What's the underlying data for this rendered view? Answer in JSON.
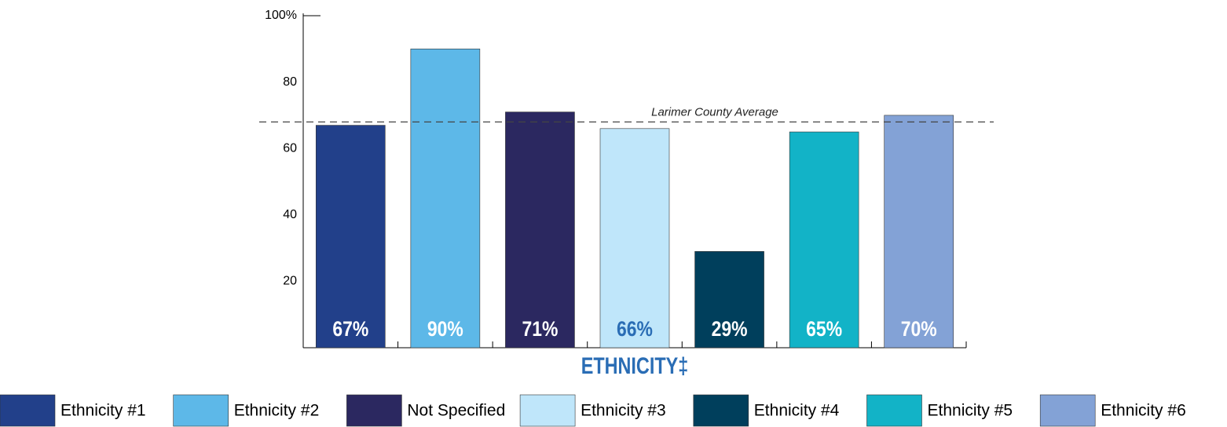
{
  "chart_data": {
    "type": "bar",
    "categories": [
      "Ethnicity #1",
      "Ethnicity #2",
      "Not Specified",
      "Ethnicity #3",
      "Ethnicity #4",
      "Ethnicity #5",
      "Ethnicity #6"
    ],
    "values": [
      67,
      90,
      71,
      66,
      29,
      65,
      70
    ],
    "value_labels": [
      "67%",
      "90%",
      "71%",
      "66%",
      "29%",
      "65%",
      "70%"
    ],
    "colors": [
      "#22408a",
      "#5db8e8",
      "#2b2860",
      "#bfe6fa",
      "#003f5c",
      "#12b3c7",
      "#83a2d6"
    ],
    "value_label_colors": [
      "#ffffff",
      "#ffffff",
      "#ffffff",
      "#2a6db5",
      "#ffffff",
      "#ffffff",
      "#ffffff"
    ],
    "x_label": "ETHNICITY‡",
    "ylim": [
      0,
      100
    ],
    "yticks": [
      20,
      40,
      60,
      80,
      {
        "value": 100,
        "label": "100%"
      }
    ],
    "reference_line": {
      "value": 68,
      "label": "Larimer County Average"
    },
    "legend": "bottom"
  }
}
